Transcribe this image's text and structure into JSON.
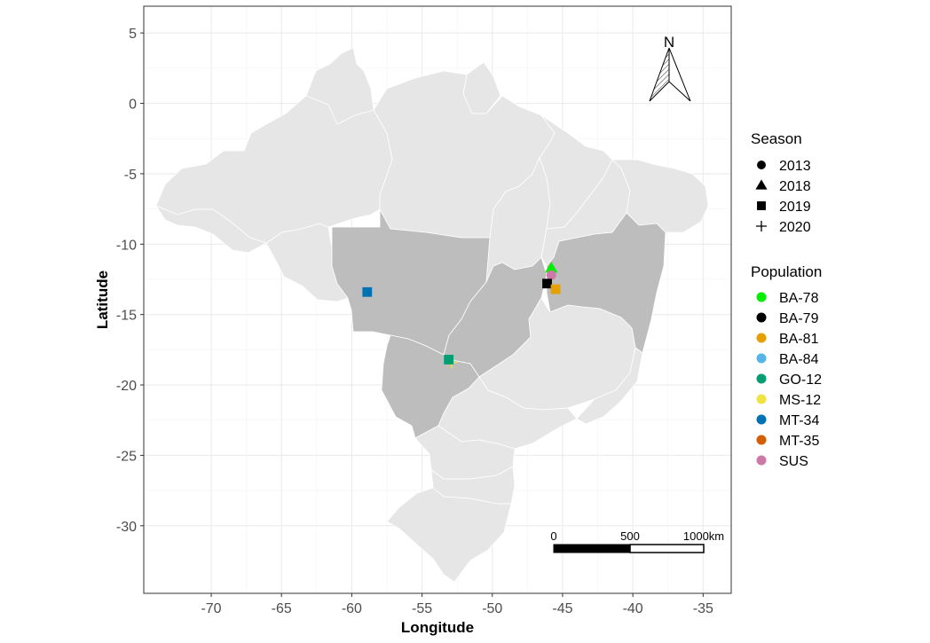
{
  "chart_data": {
    "type": "scatter",
    "xlabel": "Longitude",
    "ylabel": "Latitude",
    "xlim": [
      -74.8,
      -33.0
    ],
    "ylim": [
      -34.8,
      6.9
    ],
    "x_ticks": [
      -70,
      -65,
      -60,
      -55,
      -50,
      -45,
      -40,
      -35
    ],
    "x_tick_labels": [
      "-70",
      "-65",
      "-60",
      "-55",
      "-50",
      "-45",
      "-40",
      "-35"
    ],
    "y_ticks": [
      5,
      0,
      -5,
      -10,
      -15,
      -20,
      -25,
      -30
    ],
    "y_tick_labels": [
      "5",
      "0",
      "-5",
      "-10",
      "-15",
      "-20",
      "-25",
      "-30"
    ],
    "grid": true,
    "legend_position": "right",
    "north_arrow_label": "N",
    "scale_bar": {
      "labels": [
        "0",
        "500",
        "1000km"
      ],
      "km": [
        0,
        500,
        1000
      ]
    },
    "season_legend": {
      "title": "Season",
      "items": [
        {
          "label": "2013",
          "shape": "circle"
        },
        {
          "label": "2018",
          "shape": "triangle"
        },
        {
          "label": "2019",
          "shape": "square"
        },
        {
          "label": "2020",
          "shape": "plus"
        }
      ]
    },
    "population_legend": {
      "title": "Population",
      "items": [
        {
          "label": "BA-78",
          "color": "#00ee00"
        },
        {
          "label": "BA-79",
          "color": "#000000"
        },
        {
          "label": "BA-81",
          "color": "#e69f00"
        },
        {
          "label": "BA-84",
          "color": "#56b4e9"
        },
        {
          "label": "GO-12",
          "color": "#009e73"
        },
        {
          "label": "MS-12",
          "color": "#f0e442"
        },
        {
          "label": "MT-34",
          "color": "#0072b2"
        },
        {
          "label": "MT-35",
          "color": "#d55e00"
        },
        {
          "label": "SUS",
          "color": "#cc79a7"
        }
      ]
    },
    "points": [
      {
        "population": "BA-78",
        "season": "2018",
        "lon": -45.8,
        "lat": -11.7
      },
      {
        "population": "SUS",
        "season": "2013",
        "lon": -45.8,
        "lat": -12.2
      },
      {
        "population": "BA-79",
        "season": "2019",
        "lon": -46.1,
        "lat": -12.8
      },
      {
        "population": "BA-81",
        "season": "2019",
        "lon": -45.5,
        "lat": -13.2
      },
      {
        "population": "MT-34",
        "season": "2019",
        "lon": -58.9,
        "lat": -13.4
      },
      {
        "population": "MS-12",
        "season": "2020",
        "lon": -52.9,
        "lat": -18.4
      },
      {
        "population": "GO-12",
        "season": "2019",
        "lon": -53.1,
        "lat": -18.2
      }
    ]
  }
}
